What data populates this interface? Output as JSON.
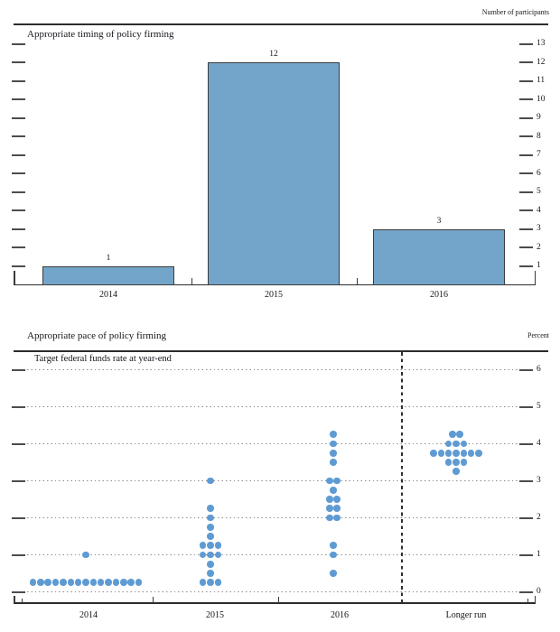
{
  "figure": {
    "source_kind": "FOMC Summary of Economic Projections dot-plot figure"
  },
  "colors": {
    "bar_fill": "#73a4c9",
    "bar_border": "#3c3c3c",
    "dot_fill": "#5f9bd3",
    "axis_line": "#2c2c2c",
    "tick": "#4d4d4d",
    "grid_dot": "#8d8d8d",
    "text": "#15151c",
    "background": "#ffffff"
  },
  "chart_data": [
    {
      "type": "bar",
      "title": "Appropriate timing of policy firming",
      "unit_label": "Number of participants",
      "categories": [
        "2014",
        "2015",
        "2016"
      ],
      "values": [
        1,
        12,
        3
      ],
      "bar_value_labels": [
        "1",
        "12",
        "3"
      ],
      "yticks": [
        1,
        2,
        3,
        4,
        5,
        6,
        7,
        8,
        9,
        10,
        11,
        12,
        13
      ],
      "ylim": [
        0,
        14
      ],
      "ytick_side": "right",
      "grid": "off"
    },
    {
      "type": "scatter",
      "title": "Appropriate pace of policy firming",
      "subtitle": "Target federal funds rate at year-end",
      "unit_label": "Percent",
      "categories": [
        "2014",
        "2015",
        "2016",
        "Longer run"
      ],
      "yticks": [
        0,
        1,
        2,
        3,
        4,
        5,
        6
      ],
      "ylim": [
        0,
        6.5
      ],
      "ytick_side": "right",
      "grid": "dotted-horizontal",
      "separator": "dashed vertical line before Longer run",
      "series": [
        {
          "name": "2014",
          "points": [
            {
              "value": 1.0,
              "count": 1
            },
            {
              "value": 0.25,
              "count": 15
            }
          ]
        },
        {
          "name": "2015",
          "points": [
            {
              "value": 3.0,
              "count": 1
            },
            {
              "value": 2.25,
              "count": 1
            },
            {
              "value": 2.0,
              "count": 1
            },
            {
              "value": 1.75,
              "count": 1
            },
            {
              "value": 1.5,
              "count": 1
            },
            {
              "value": 1.25,
              "count": 3
            },
            {
              "value": 1.0,
              "count": 3
            },
            {
              "value": 0.75,
              "count": 1
            },
            {
              "value": 0.5,
              "count": 1
            },
            {
              "value": 0.25,
              "count": 3
            }
          ]
        },
        {
          "name": "2016",
          "points": [
            {
              "value": 4.25,
              "count": 1
            },
            {
              "value": 4.0,
              "count": 1
            },
            {
              "value": 3.75,
              "count": 1
            },
            {
              "value": 3.5,
              "count": 1
            },
            {
              "value": 3.0,
              "count": 2
            },
            {
              "value": 2.75,
              "count": 1
            },
            {
              "value": 2.5,
              "count": 2
            },
            {
              "value": 2.25,
              "count": 2
            },
            {
              "value": 2.0,
              "count": 2
            },
            {
              "value": 1.25,
              "count": 1
            },
            {
              "value": 1.0,
              "count": 1
            },
            {
              "value": 0.5,
              "count": 1
            }
          ]
        },
        {
          "name": "Longer run",
          "points": [
            {
              "value": 4.25,
              "count": 2
            },
            {
              "value": 4.0,
              "count": 3
            },
            {
              "value": 3.75,
              "count": 7
            },
            {
              "value": 3.5,
              "count": 3
            },
            {
              "value": 3.25,
              "count": 1
            }
          ]
        }
      ]
    }
  ]
}
